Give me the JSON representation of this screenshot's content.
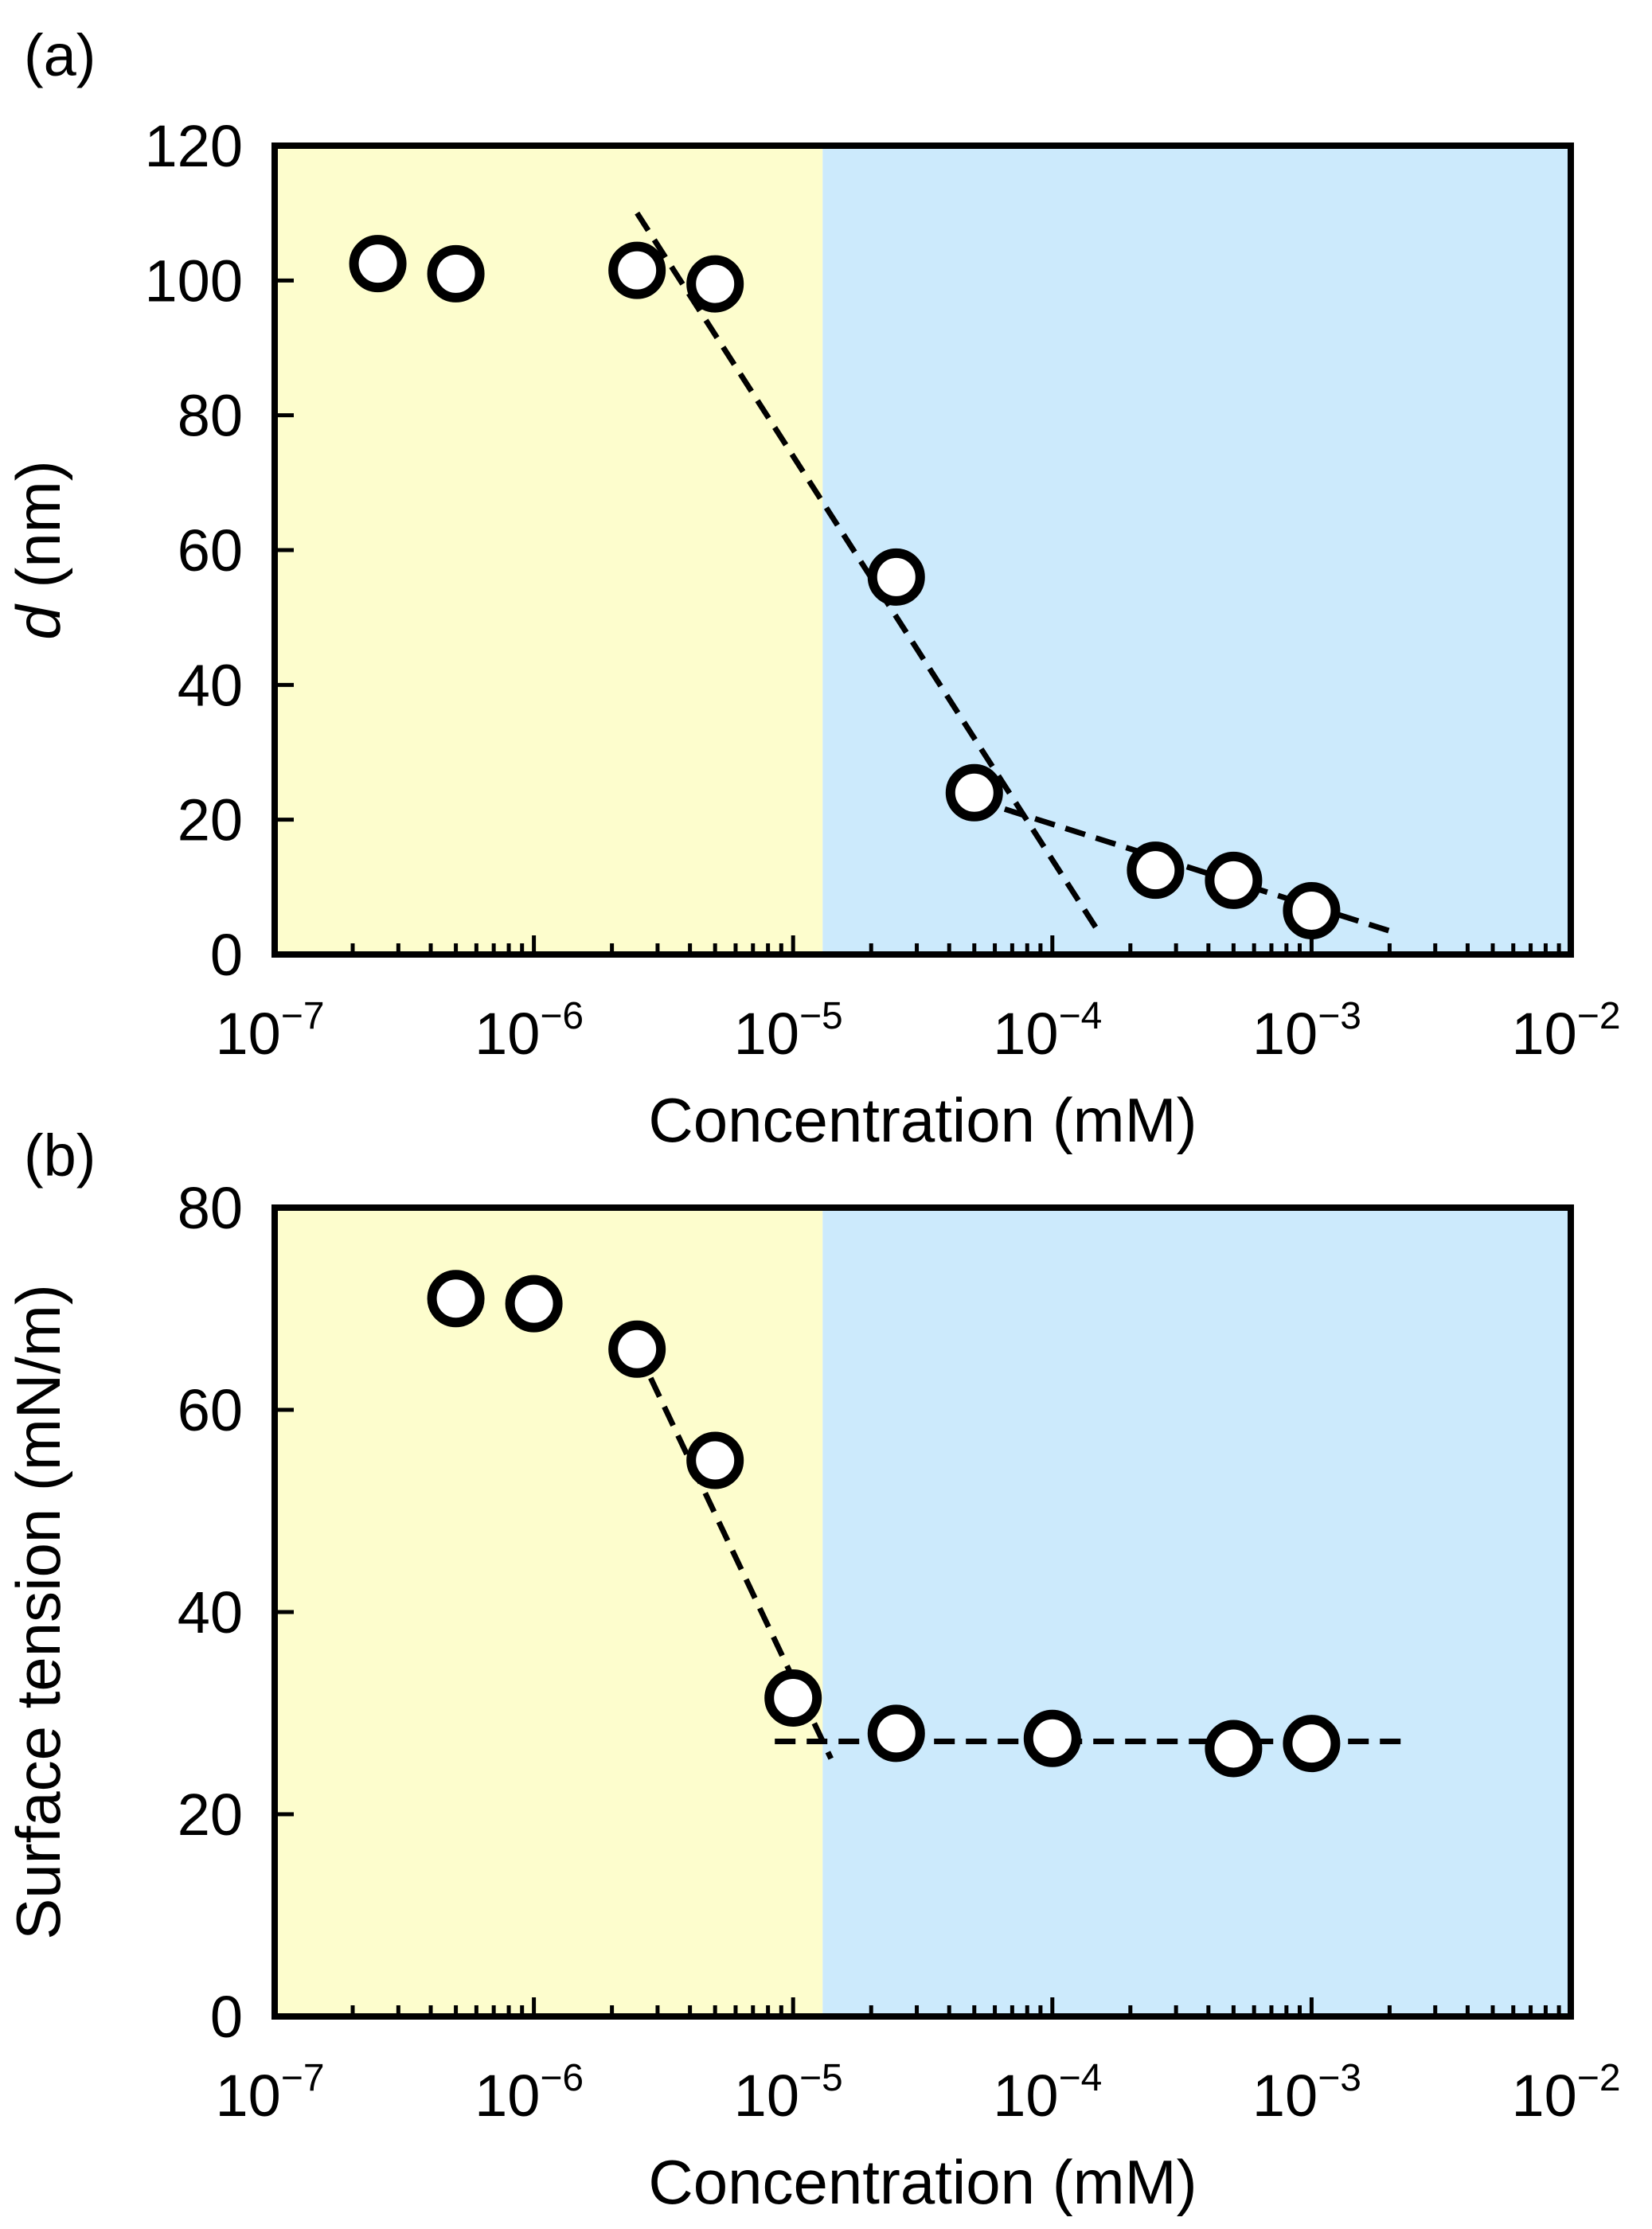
{
  "chart_data": [
    {
      "panel_label": "(a)",
      "type": "scatter",
      "title": "",
      "xlabel": "Concentration (mM)",
      "ylabel_symbol": "d",
      "ylabel_unit": " (nm)",
      "xscale": "log",
      "xlim": [
        1e-07,
        0.01
      ],
      "ylim": [
        0,
        120
      ],
      "yticks": [
        0,
        20,
        40,
        60,
        80,
        100,
        120
      ],
      "ytick_labels": [
        "0",
        "20",
        "40",
        "60",
        "80",
        "100",
        "120"
      ],
      "xticks": [
        1e-07,
        1e-06,
        1e-05,
        0.0001,
        0.001,
        0.01
      ],
      "xtick_labels": [
        {
          "base": "10",
          "exp": "−7"
        },
        {
          "base": "10",
          "exp": "−6"
        },
        {
          "base": "10",
          "exp": "−5"
        },
        {
          "base": "10",
          "exp": "−4"
        },
        {
          "base": "10",
          "exp": "−3"
        },
        {
          "base": "10",
          "exp": "−2"
        }
      ],
      "regions": [
        {
          "x": [
            1e-07,
            1.3e-05
          ],
          "color": "#fdfdcd"
        },
        {
          "x": [
            1.3e-05,
            0.01
          ],
          "color": "#cceafc"
        }
      ],
      "series": [
        {
          "name": "data",
          "marker": "open-circle",
          "x": [
            2.5e-07,
            5e-07,
            2.5e-06,
            5e-06,
            2.5e-05,
            5e-05,
            0.00025,
            0.0005,
            0.001
          ],
          "y": [
            102.5,
            101,
            101.5,
            99.5,
            56,
            24,
            12.5,
            11,
            6.5
          ]
        }
      ],
      "fit_lines": [
        {
          "x": [
            2.5e-06,
            0.00015
          ],
          "y": [
            110,
            3.5
          ],
          "style": "dashed"
        },
        {
          "x": [
            5e-05,
            0.002
          ],
          "y": [
            23,
            3.5
          ],
          "style": "dashed"
        }
      ]
    },
    {
      "panel_label": "(b)",
      "type": "scatter",
      "title": "",
      "xlabel": "Concentration (mM)",
      "ylabel": "Surface tension (mN/m)",
      "xscale": "log",
      "xlim": [
        1e-07,
        0.01
      ],
      "ylim": [
        0,
        80
      ],
      "yticks": [
        0,
        20,
        40,
        60,
        80
      ],
      "ytick_labels": [
        "0",
        "20",
        "40",
        "60",
        "80"
      ],
      "xticks": [
        1e-07,
        1e-06,
        1e-05,
        0.0001,
        0.001,
        0.01
      ],
      "xtick_labels": [
        {
          "base": "10",
          "exp": "−7"
        },
        {
          "base": "10",
          "exp": "−6"
        },
        {
          "base": "10",
          "exp": "−5"
        },
        {
          "base": "10",
          "exp": "−4"
        },
        {
          "base": "10",
          "exp": "−3"
        },
        {
          "base": "10",
          "exp": "−2"
        }
      ],
      "regions": [
        {
          "x": [
            1e-07,
            1.3e-05
          ],
          "color": "#fdfdcd"
        },
        {
          "x": [
            1.3e-05,
            0.01
          ],
          "color": "#cceafc"
        }
      ],
      "series": [
        {
          "name": "data",
          "marker": "open-circle",
          "x": [
            5e-07,
            1e-06,
            2.5e-06,
            5e-06,
            1e-05,
            2.5e-05,
            0.0001,
            0.0005,
            0.001
          ],
          "y": [
            71,
            70.5,
            66,
            55,
            31.5,
            28,
            27.5,
            26.5,
            27
          ]
        }
      ],
      "fit_lines": [
        {
          "x": [
            2.5e-06,
            1.4e-05
          ],
          "y": [
            66,
            25.5
          ],
          "style": "dashed"
        },
        {
          "x": [
            8.5e-06,
            0.0023
          ],
          "y": [
            27.2,
            27.2
          ],
          "style": "dashed"
        }
      ]
    }
  ]
}
